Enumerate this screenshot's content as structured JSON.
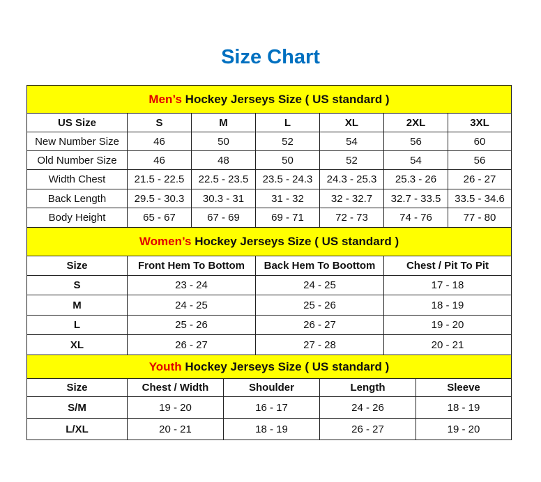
{
  "title": "Size Chart",
  "colors": {
    "title": "#0070C0",
    "header_bg": "#FFFF00",
    "highlight": "#E00000"
  },
  "mens": {
    "highlight": "Men’s",
    "heading": " Hockey Jerseys Size ( US standard )",
    "columns": [
      "US Size",
      "S",
      "M",
      "L",
      "XL",
      "2XL",
      "3XL"
    ],
    "rows": [
      [
        "New Number Size",
        "46",
        "50",
        "52",
        "54",
        "56",
        "60"
      ],
      [
        "Old Number Size",
        "46",
        "48",
        "50",
        "52",
        "54",
        "56"
      ],
      [
        "Width Chest",
        "21.5 - 22.5",
        "22.5 - 23.5",
        "23.5 - 24.3",
        "24.3 - 25.3",
        "25.3 - 26",
        "26 - 27"
      ],
      [
        "Back Length",
        "29.5 - 30.3",
        "30.3 - 31",
        "31 - 32",
        "32 - 32.7",
        "32.7 - 33.5",
        "33.5 - 34.6"
      ],
      [
        "Body Height",
        "65 - 67",
        "67 - 69",
        "69 - 71",
        "72 - 73",
        "74 - 76",
        "77 - 80"
      ]
    ]
  },
  "womens": {
    "highlight": "Women’s",
    "heading": " Hockey Jerseys Size ( US standard )",
    "columns": [
      "Size",
      "Front Hem To Bottom",
      "Back Hem To Boottom",
      "Chest / Pit To Pit"
    ],
    "rows": [
      [
        "S",
        "23 - 24",
        "24 - 25",
        "17 - 18"
      ],
      [
        "M",
        "24 - 25",
        "25 - 26",
        "18 - 19"
      ],
      [
        "L",
        "25 - 26",
        "26 - 27",
        "19 - 20"
      ],
      [
        "XL",
        "26 - 27",
        "27 - 28",
        "20 - 21"
      ]
    ]
  },
  "youth": {
    "highlight": "Youth",
    "heading": " Hockey Jerseys Size ( US standard )",
    "columns": [
      "Size",
      "Chest / Width",
      "Shoulder",
      "Length",
      "Sleeve"
    ],
    "rows": [
      [
        "S/M",
        "19 - 20",
        "16 - 17",
        "24 - 26",
        "18 - 19"
      ],
      [
        "L/XL",
        "20 - 21",
        "18 - 19",
        "26 - 27",
        "19 - 20"
      ]
    ]
  }
}
